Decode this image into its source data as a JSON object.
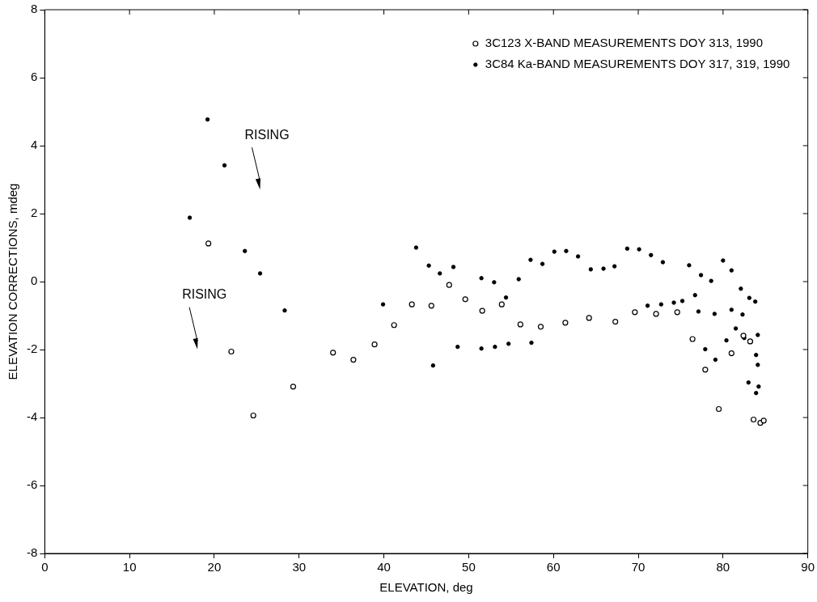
{
  "chart_data": {
    "type": "scatter",
    "xlabel": "ELEVATION, deg",
    "ylabel": "ELEVATION CORRECTIONS, mdeg",
    "xlim": [
      0,
      90
    ],
    "xticks": [
      0,
      10,
      20,
      30,
      40,
      50,
      60,
      70,
      80,
      90
    ],
    "ylim": [
      -8,
      8
    ],
    "yticks": [
      -8,
      -6,
      -4,
      -2,
      0,
      2,
      4,
      6,
      8
    ],
    "grid": false,
    "legend": "top right",
    "annotations": [
      "RISING",
      "RISING"
    ],
    "series": [
      {
        "name": "3C123 X-BAND MEASUREMENTS DOY 313, 1990",
        "color": "#000000",
        "marker": "circle",
        "x": [
          19.3,
          22.0,
          24.6,
          29.3,
          34.0,
          36.4,
          38.9,
          41.2,
          43.3,
          45.6,
          47.7,
          49.6,
          51.6,
          53.9,
          56.1,
          58.5,
          61.4,
          64.2,
          67.3,
          69.6,
          72.1,
          74.6,
          76.4,
          77.9,
          79.5,
          81.0,
          82.4,
          83.2,
          83.6,
          84.4,
          84.8
        ],
        "values": [
          1.12,
          -2.06,
          -3.94,
          -3.09,
          -2.09,
          -2.3,
          -1.85,
          -1.28,
          -0.67,
          -0.71,
          -0.1,
          -0.52,
          -0.86,
          -0.67,
          -1.26,
          -1.33,
          -1.21,
          -1.07,
          -1.18,
          -0.9,
          -0.95,
          -0.9,
          -1.69,
          -2.59,
          -3.75,
          -2.11,
          -1.59,
          -1.76,
          -4.06,
          -4.16,
          -4.09
        ]
      },
      {
        "name": "3C84 Ka-BAND MEASUREMENTS DOY 317, 319, 1990",
        "color": "#000000",
        "marker": "circle",
        "x": [
          17.1,
          19.2,
          21.2,
          23.6,
          25.4,
          28.3,
          39.9,
          43.8,
          45.3,
          45.8,
          46.6,
          48.2,
          48.7,
          51.5,
          51.5,
          53.0,
          53.1,
          54.4,
          54.7,
          55.9,
          57.3,
          57.4,
          58.7,
          60.1,
          61.5,
          62.9,
          64.4,
          65.9,
          67.2,
          68.7,
          70.1,
          71.1,
          71.5,
          72.7,
          72.9,
          74.2,
          75.2,
          76.0,
          76.7,
          77.1,
          77.4,
          77.9,
          78.6,
          79.0,
          79.1,
          80.0,
          80.4,
          81.0,
          81.0,
          81.5,
          82.1,
          82.3,
          82.5,
          83.0,
          83.1,
          83.3,
          83.8,
          83.9,
          83.9,
          84.1,
          84.1,
          84.2
        ],
        "values": [
          1.88,
          4.77,
          3.42,
          0.9,
          0.24,
          -0.85,
          -0.67,
          1.0,
          0.47,
          -2.47,
          0.24,
          0.43,
          -1.92,
          0.1,
          -1.97,
          -0.02,
          -1.92,
          -0.47,
          -1.83,
          0.07,
          0.64,
          -1.8,
          0.52,
          0.88,
          0.9,
          0.74,
          0.36,
          0.38,
          0.45,
          0.97,
          0.95,
          -0.71,
          0.78,
          -0.67,
          0.57,
          -0.62,
          -0.57,
          0.48,
          -0.4,
          -0.88,
          0.19,
          -1.99,
          0.02,
          -0.95,
          -2.3,
          0.62,
          -1.73,
          0.33,
          -0.83,
          -1.38,
          -0.21,
          -0.97,
          -1.66,
          -2.97,
          -0.48,
          -1.76,
          -0.59,
          -2.16,
          -3.28,
          -1.57,
          -2.45,
          -3.09
        ]
      }
    ]
  }
}
